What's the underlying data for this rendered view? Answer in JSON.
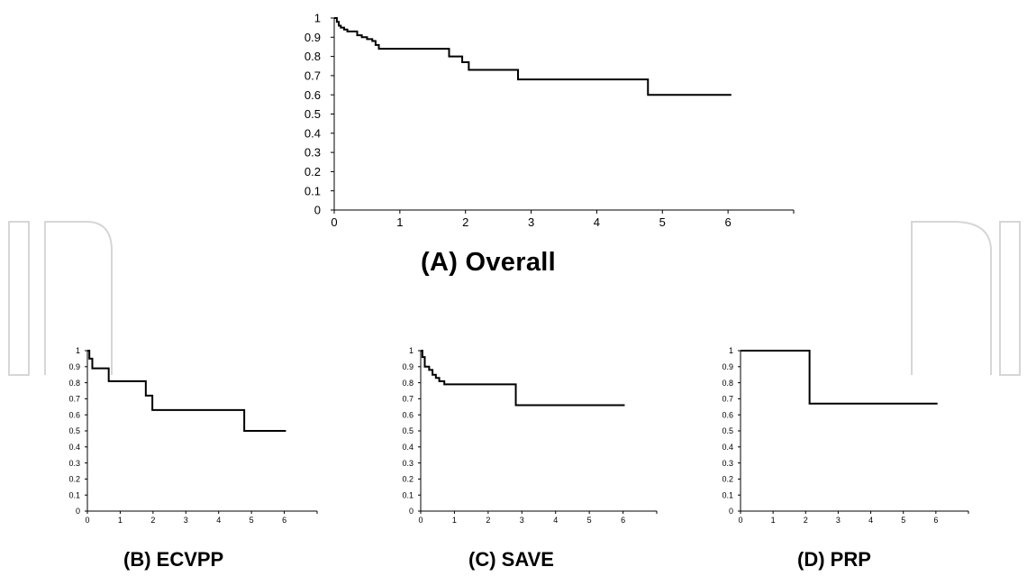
{
  "chart_data": [
    {
      "id": "A",
      "type": "line",
      "step": true,
      "title": "(A)  Overall",
      "xlim": [
        0,
        7
      ],
      "ylim": [
        0,
        1
      ],
      "xticks": [
        "0",
        "1",
        "2",
        "3",
        "4",
        "5",
        "6"
      ],
      "yticks": [
        "0",
        "0.1",
        "0.2",
        "0.3",
        "0.4",
        "0.5",
        "0.6",
        "0.7",
        "0.8",
        "0.9",
        "1"
      ],
      "series": [
        {
          "x": [
            0,
            0.04,
            0.07,
            0.1,
            0.15,
            0.2,
            0.28,
            0.35,
            0.42,
            0.5,
            0.58,
            0.63,
            0.68,
            1.75,
            1.95,
            2.05,
            2.15,
            2.8,
            4.78,
            6.05
          ],
          "y": [
            1,
            0.98,
            0.96,
            0.95,
            0.94,
            0.93,
            0.93,
            0.91,
            0.9,
            0.89,
            0.88,
            0.86,
            0.84,
            0.8,
            0.77,
            0.73,
            0.73,
            0.68,
            0.6,
            0.6
          ]
        }
      ]
    },
    {
      "id": "B",
      "type": "line",
      "step": true,
      "title": "(B)  ECVPP",
      "xlim": [
        0,
        7
      ],
      "ylim": [
        0,
        1
      ],
      "xticks": [
        "0",
        "1",
        "2",
        "3",
        "4",
        "5",
        "6"
      ],
      "yticks": [
        "0",
        "0.1",
        "0.2",
        "0.3",
        "0.4",
        "0.5",
        "0.6",
        "0.7",
        "0.8",
        "0.9",
        "1"
      ],
      "series": [
        {
          "x": [
            0,
            0.06,
            0.15,
            0.65,
            1.78,
            1.98,
            4.78,
            6.05
          ],
          "y": [
            1,
            0.95,
            0.89,
            0.81,
            0.72,
            0.63,
            0.5,
            0.5
          ]
        }
      ]
    },
    {
      "id": "C",
      "type": "line",
      "step": true,
      "title": "(C)  SAVE",
      "xlim": [
        0,
        7
      ],
      "ylim": [
        0,
        1
      ],
      "xticks": [
        "0",
        "1",
        "2",
        "3",
        "4",
        "5",
        "6"
      ],
      "yticks": [
        "0",
        "0.1",
        "0.2",
        "0.3",
        "0.4",
        "0.5",
        "0.6",
        "0.7",
        "0.8",
        "0.9",
        "1"
      ],
      "series": [
        {
          "x": [
            0,
            0.05,
            0.12,
            0.25,
            0.35,
            0.45,
            0.55,
            0.7,
            2.82,
            6.05
          ],
          "y": [
            1,
            0.96,
            0.9,
            0.88,
            0.85,
            0.83,
            0.81,
            0.79,
            0.66,
            0.66
          ]
        }
      ]
    },
    {
      "id": "D",
      "type": "line",
      "step": true,
      "title": "(D)  PRP",
      "xlim": [
        0,
        7
      ],
      "ylim": [
        0,
        1
      ],
      "xticks": [
        "0",
        "1",
        "2",
        "3",
        "4",
        "5",
        "6"
      ],
      "yticks": [
        "0",
        "0.1",
        "0.2",
        "0.3",
        "0.4",
        "0.5",
        "0.6",
        "0.7",
        "0.8",
        "0.9",
        "1"
      ],
      "series": [
        {
          "x": [
            0,
            2.12,
            6.05
          ],
          "y": [
            1,
            0.67,
            0.67
          ]
        }
      ]
    }
  ]
}
